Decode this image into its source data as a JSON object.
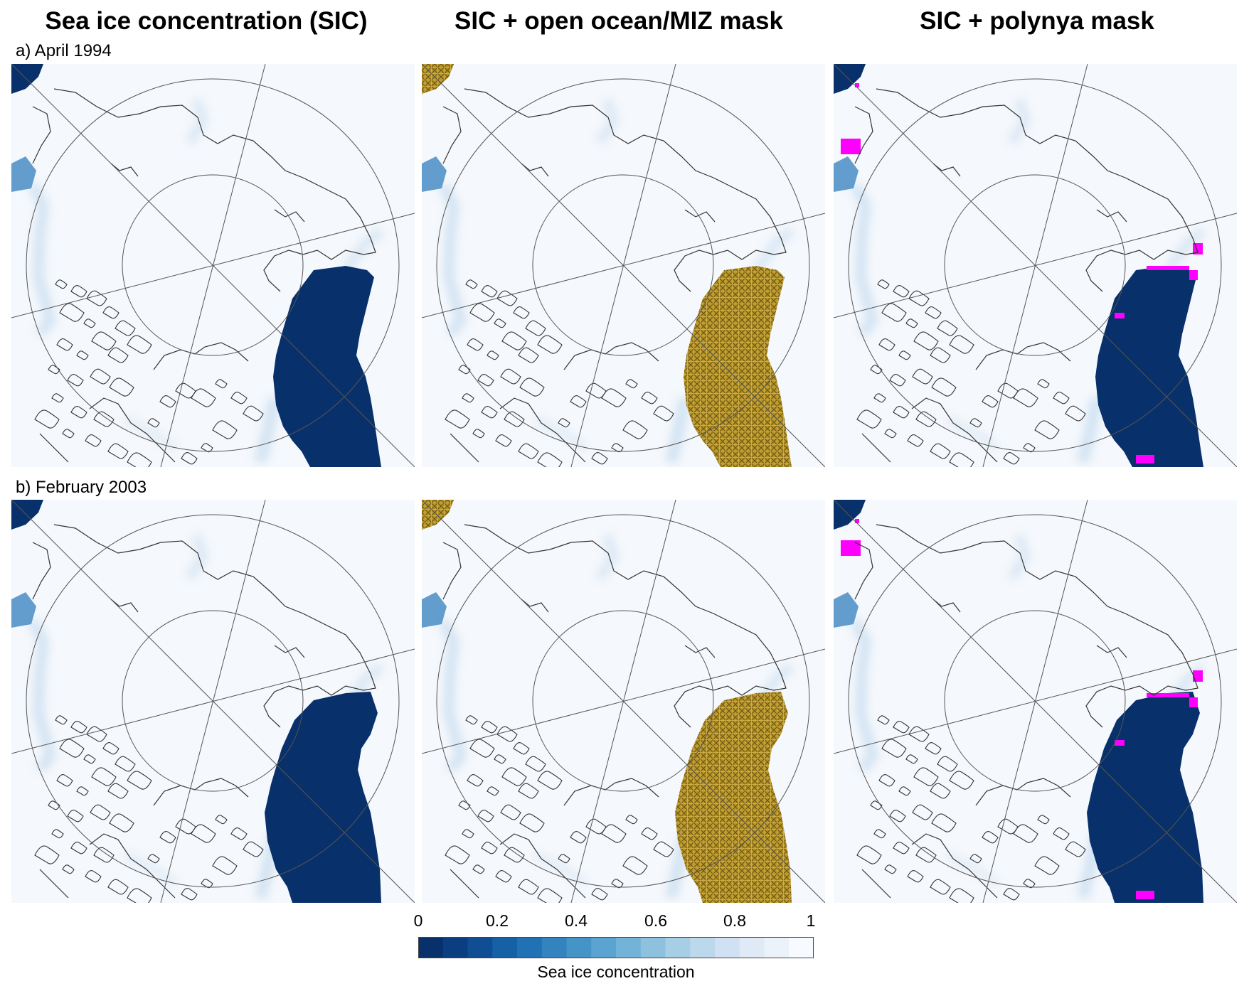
{
  "column_titles": [
    "Sea ice concentration (SIC)",
    "SIC + open ocean/MIZ mask",
    "SIC + polynya mask"
  ],
  "row_labels": [
    "a) April 1994",
    "b) February 2003"
  ],
  "colorbar": {
    "ticks": [
      "0",
      "0.2",
      "0.4",
      "0.6",
      "0.8",
      "1"
    ],
    "label": "Sea ice concentration",
    "colors": [
      "#08306b",
      "#0b3e80",
      "#104d93",
      "#1660a6",
      "#2171b5",
      "#3383be",
      "#4494c7",
      "#5ba3d0",
      "#74b3d8",
      "#8dc1dd",
      "#a6cee4",
      "#bcd8eb",
      "#cfe1f2",
      "#dfeaf6",
      "#ebf2fa",
      "#f7fbff"
    ]
  },
  "legend_colors": {
    "land_outline": "#333333",
    "open_ocean": "#08306b",
    "miz_mask": "#b8962a",
    "polynya_mask": "#ff00ff",
    "ice": "#f5f8fc"
  }
}
